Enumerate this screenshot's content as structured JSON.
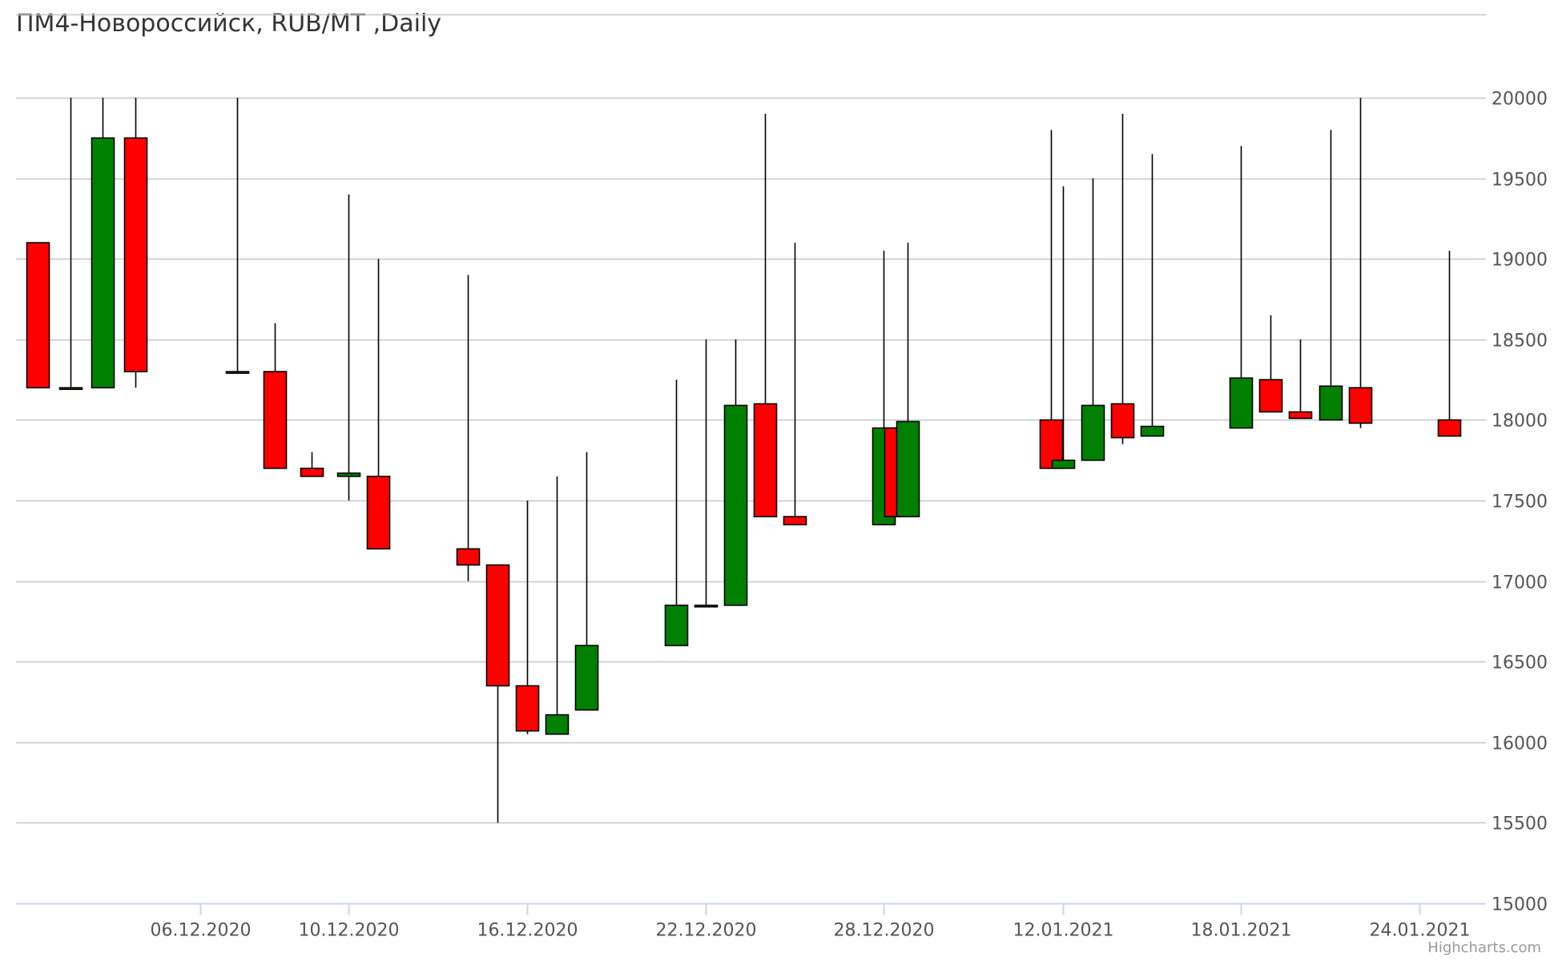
{
  "chart_data": {
    "type": "candlestick",
    "title": "ПМ4-Новороссийск, RUB/MT ,Daily",
    "credits": "Highcharts.com",
    "ylim": [
      15000,
      20000
    ],
    "y_ticks": [
      15000,
      15500,
      16000,
      16500,
      17000,
      17500,
      18000,
      18500,
      19000,
      19500,
      20000
    ],
    "y_axis_side": "right",
    "grid": true,
    "x_axis": {
      "min": "2020-12-01",
      "max": "2021-01-24",
      "ticks": [
        {
          "label": "06.12.2020",
          "date": "2020-12-06"
        },
        {
          "label": "10.12.2020",
          "date": "2020-12-10"
        },
        {
          "label": "16.12.2020",
          "date": "2020-12-16"
        },
        {
          "label": "22.12.2020",
          "date": "2020-12-22"
        },
        {
          "label": "28.12.2020",
          "date": "2020-12-28"
        },
        {
          "label": "12.01.2021",
          "date": "2021-01-12"
        },
        {
          "label": "18.01.2021",
          "date": "2021-01-18"
        },
        {
          "label": "24.01.2021",
          "date": "2021-01-24"
        }
      ]
    },
    "colors": {
      "up": "#008000",
      "down": "#ff0000",
      "wick": "#000000",
      "grid": "#c0c8d0",
      "axis": "#ccd6eb"
    },
    "candles": [
      {
        "date": "2020-12-01",
        "open": 19100,
        "high": 19100,
        "low": 18200,
        "close": 18200
      },
      {
        "date": "2020-12-02",
        "open": 18200,
        "high": 20000,
        "low": 18200,
        "close": 18200
      },
      {
        "date": "2020-12-03",
        "open": 18200,
        "high": 20000,
        "low": 18200,
        "close": 19750
      },
      {
        "date": "2020-12-04",
        "open": 19750,
        "high": 20000,
        "low": 18200,
        "close": 18300
      },
      {
        "date": "2020-12-07",
        "open": 18300,
        "high": 20000,
        "low": 18300,
        "close": 18300
      },
      {
        "date": "2020-12-08",
        "open": 18300,
        "high": 18600,
        "low": 17700,
        "close": 17700
      },
      {
        "date": "2020-12-09",
        "open": 17700,
        "high": 17800,
        "low": 17650,
        "close": 17650
      },
      {
        "date": "2020-12-10",
        "open": 17650,
        "high": 19400,
        "low": 17500,
        "close": 17670
      },
      {
        "date": "2020-12-11",
        "open": 17650,
        "high": 19000,
        "low": 17200,
        "close": 17200
      },
      {
        "date": "2020-12-14",
        "open": 17200,
        "high": 18900,
        "low": 17000,
        "close": 17100
      },
      {
        "date": "2020-12-15",
        "open": 17100,
        "high": 17100,
        "low": 15500,
        "close": 16350
      },
      {
        "date": "2020-12-16",
        "open": 16350,
        "high": 17500,
        "low": 16050,
        "close": 16070
      },
      {
        "date": "2020-12-17",
        "open": 16050,
        "high": 17650,
        "low": 16050,
        "close": 16170
      },
      {
        "date": "2020-12-18",
        "open": 16200,
        "high": 17800,
        "low": 16200,
        "close": 16600
      },
      {
        "date": "2020-12-21",
        "open": 16600,
        "high": 18250,
        "low": 16600,
        "close": 16850
      },
      {
        "date": "2020-12-22",
        "open": 16850,
        "high": 18500,
        "low": 16850,
        "close": 16850
      },
      {
        "date": "2020-12-23",
        "open": 16850,
        "high": 18500,
        "low": 16850,
        "close": 18090
      },
      {
        "date": "2020-12-24",
        "open": 18100,
        "high": 19900,
        "low": 17400,
        "close": 17400
      },
      {
        "date": "2020-12-25",
        "open": 17400,
        "high": 19100,
        "low": 17350,
        "close": 17350
      },
      {
        "date": "2020-12-28",
        "open": 17350,
        "high": 19050,
        "low": 17350,
        "close": 17950
      },
      {
        "date": "2020-12-29",
        "open": 17950,
        "high": 17950,
        "low": 17400,
        "close": 17400
      },
      {
        "date": "2020-12-30",
        "open": 17400,
        "high": 19100,
        "low": 17400,
        "close": 17990
      },
      {
        "date": "2021-01-11",
        "open": 18000,
        "high": 19800,
        "low": 17700,
        "close": 17700
      },
      {
        "date": "2021-01-12",
        "open": 17700,
        "high": 19450,
        "low": 17700,
        "close": 17750
      },
      {
        "date": "2021-01-13",
        "open": 17750,
        "high": 19500,
        "low": 17750,
        "close": 18090
      },
      {
        "date": "2021-01-14",
        "open": 18100,
        "high": 19900,
        "low": 17850,
        "close": 17890
      },
      {
        "date": "2021-01-15",
        "open": 17900,
        "high": 19650,
        "low": 17900,
        "close": 17960
      },
      {
        "date": "2021-01-18",
        "open": 17950,
        "high": 19700,
        "low": 17950,
        "close": 18260
      },
      {
        "date": "2021-01-19",
        "open": 18250,
        "high": 18650,
        "low": 18050,
        "close": 18050
      },
      {
        "date": "2021-01-20",
        "open": 18050,
        "high": 18500,
        "low": 18010,
        "close": 18010
      },
      {
        "date": "2021-01-21",
        "open": 18000,
        "high": 19800,
        "low": 18000,
        "close": 18210
      },
      {
        "date": "2021-01-22",
        "open": 18200,
        "high": 20000,
        "low": 17950,
        "close": 17980
      },
      {
        "date": "2021-01-25",
        "open": 18000,
        "high": 19050,
        "low": 17900,
        "close": 17900
      }
    ]
  }
}
